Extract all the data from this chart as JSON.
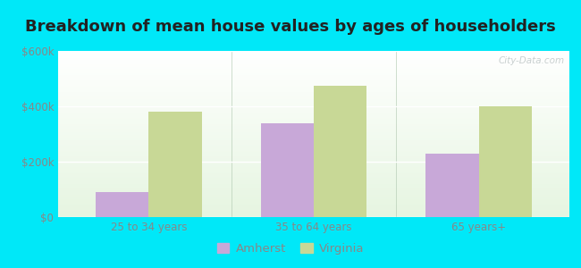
{
  "title": "Breakdown of mean house values by ages of householders",
  "categories": [
    "25 to 34 years",
    "35 to 64 years",
    "65 years+"
  ],
  "amherst_values": [
    90000,
    340000,
    230000
  ],
  "virginia_values": [
    380000,
    475000,
    400000
  ],
  "ylim": [
    0,
    600000
  ],
  "yticks": [
    0,
    200000,
    400000,
    600000
  ],
  "ytick_labels": [
    "$0",
    "$200k",
    "$400k",
    "$600k"
  ],
  "bar_color_amherst": "#c8a8d8",
  "bar_color_virginia": "#c8d896",
  "legend_amherst": "Amherst",
  "legend_virginia": "Virginia",
  "background_outer": "#00e8f8",
  "grid_color": "#e0ece0",
  "bar_width": 0.32,
  "title_fontsize": 13,
  "tick_fontsize": 8.5,
  "legend_fontsize": 9.5,
  "tick_color": "#888888",
  "title_color": "#222222",
  "watermark": "City-Data.com"
}
